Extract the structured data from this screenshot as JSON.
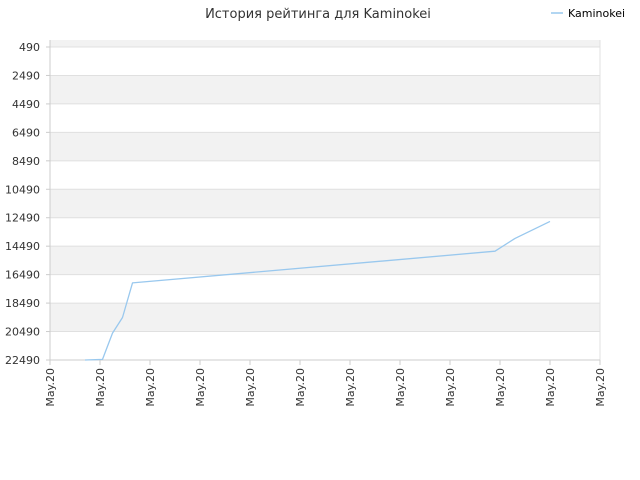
{
  "chart_data": {
    "type": "line",
    "title": "История рейтинга для Kaminokei",
    "legend": {
      "position": "top-right",
      "label": "Kaminokei"
    },
    "y_ticks": [
      "490",
      "2490",
      "4490",
      "6490",
      "8490",
      "10490",
      "12490",
      "14490",
      "16490",
      "18490",
      "20490",
      "22490"
    ],
    "ylim": [
      490,
      22490
    ],
    "y_inverted": true,
    "x_ticks": [
      "May.20",
      "May.20",
      "May.20",
      "May.20",
      "May.20",
      "May.20",
      "May.20",
      "May.20",
      "May.20",
      "May.20",
      "May.20",
      "May.20"
    ],
    "xlim": [
      0,
      11
    ],
    "grid": "horizontal alternating bands",
    "colors": {
      "series": "#99c8ee",
      "band": "#f2f2f2",
      "grid": "#e0e0e0",
      "axis": "#cccccc"
    },
    "series": [
      {
        "name": "Kaminokei",
        "x": [
          0.7,
          1.05,
          1.25,
          1.45,
          1.65,
          8.9,
          9.3,
          10.0
        ],
        "y": [
          22490,
          22450,
          20600,
          19500,
          17070,
          14840,
          13940,
          12750
        ]
      }
    ]
  }
}
